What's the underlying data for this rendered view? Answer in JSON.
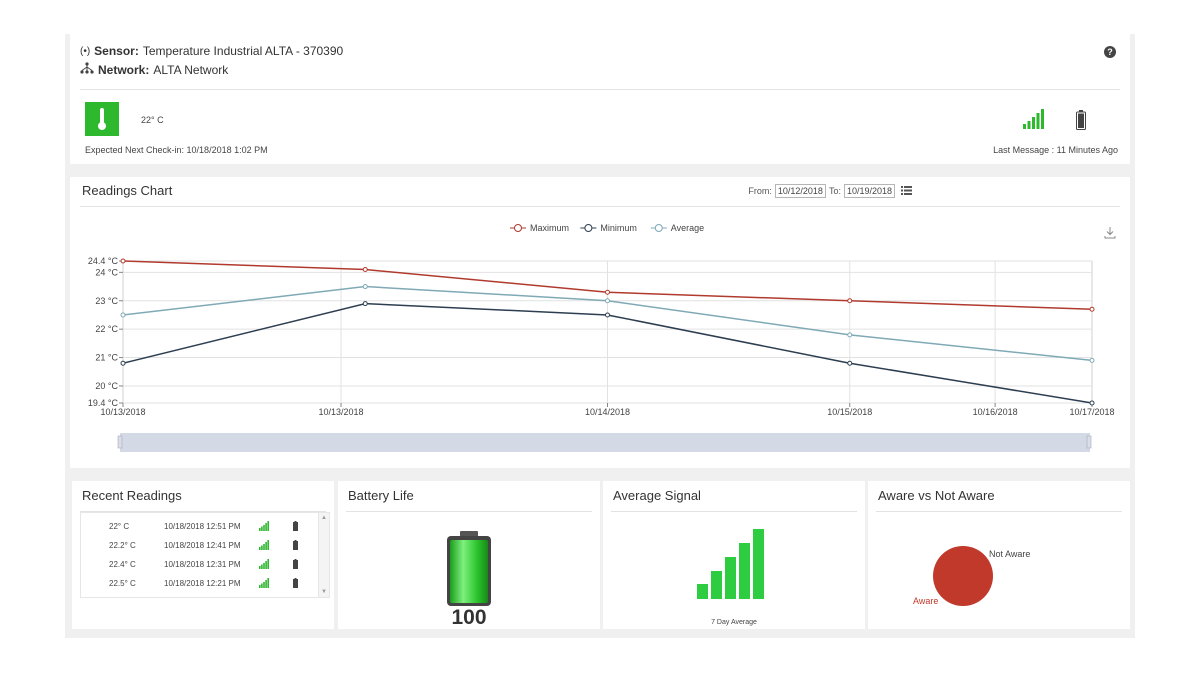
{
  "header": {
    "sensor_label": "Sensor:",
    "sensor_name": "Temperature Industrial ALTA - 370390",
    "network_label": "Network:",
    "network_name": "ALTA Network",
    "help": "?",
    "temperature": "22° C",
    "next_checkin": "Expected Next Check-in: 10/18/2018 1:02 PM",
    "last_message": "Last Message : 11 Minutes Ago",
    "signal_icon": "signal-bars-icon",
    "battery_icon": "battery-icon",
    "status_color": "#2eb82e"
  },
  "chart_panel": {
    "title": "Readings Chart",
    "from_label": "From:",
    "from_value": "10/12/2018",
    "to_label": "To:",
    "to_value": "10/19/2018",
    "download_icon": "download-icon"
  },
  "chart_data": {
    "type": "line",
    "x": [
      "10/13/2018 00:00",
      "10/13/2018 12:00",
      "10/14/2018 00:00",
      "10/14/2018 12:00",
      "10/15/2018 00:00",
      "10/15/2018 12:00",
      "10/16/2018 00:00",
      "10/16/2018 12:00",
      "10/17/2018 00:00"
    ],
    "x_tick_labels": [
      "10/13/2018",
      "10/13/2018",
      "10/14/2018",
      "10/15/2018",
      "10/16/2018",
      "10/17/2018"
    ],
    "y_tick_labels": [
      "24.4 °C",
      "24 °C",
      "23 °C",
      "22 °C",
      "21 °C",
      "20 °C",
      "19.4 °C"
    ],
    "ylim": [
      19.4,
      24.4
    ],
    "series": [
      {
        "name": "Maximum",
        "color": "#b03a2e",
        "points": [
          [
            0,
            24.4
          ],
          [
            1.25,
            24.1
          ],
          [
            2.5,
            23.3
          ],
          [
            3.75,
            23.0
          ],
          [
            5,
            22.7
          ]
        ]
      },
      {
        "name": "Minimum",
        "color": "#2c3e50",
        "points": [
          [
            0,
            20.8
          ],
          [
            1.25,
            22.9
          ],
          [
            2.5,
            22.5
          ],
          [
            3.75,
            20.8
          ],
          [
            5,
            19.4
          ]
        ]
      },
      {
        "name": "Average",
        "color": "#7fa9b5",
        "points": [
          [
            0,
            22.5
          ],
          [
            1.25,
            23.5
          ],
          [
            2.5,
            23.0
          ],
          [
            3.75,
            21.8
          ],
          [
            5,
            20.9
          ]
        ]
      }
    ],
    "grid": true,
    "legend": "top-center"
  },
  "recent": {
    "title": "Recent Readings",
    "rows": [
      {
        "temp": "22° C",
        "date": "10/18/2018 12:51 PM"
      },
      {
        "temp": "22.2° C",
        "date": "10/18/2018 12:41 PM"
      },
      {
        "temp": "22.4° C",
        "date": "10/18/2018 12:31 PM"
      },
      {
        "temp": "22.5° C",
        "date": "10/18/2018 12:21 PM"
      }
    ]
  },
  "battery": {
    "title": "Battery Life",
    "value": "100"
  },
  "signal": {
    "title": "Average Signal",
    "caption": "7 Day Average"
  },
  "aware": {
    "title": "Aware vs Not Aware",
    "not_aware_label": "Not Aware",
    "aware_label": "Aware",
    "aware_color": "#c0392b"
  }
}
